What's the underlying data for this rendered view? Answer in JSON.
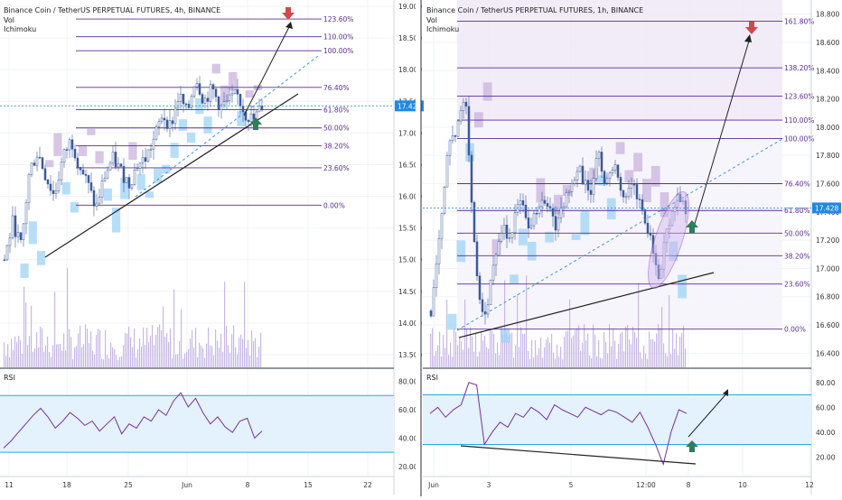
{
  "colors": {
    "grid": "#f0f3fa",
    "fib_line": "#5b2c94",
    "fib_label": "#5b2c94",
    "cloud_green": "#9fd3f5",
    "cloud_red": "#c9b3de",
    "candle": "#3d5a9a",
    "volume": "#c7b8e6",
    "rsi_line": "#7b2fa0",
    "rsi_band": "#e3f2fd",
    "rsi_bound": "#2aa8d6",
    "trend": "#222222",
    "dashed": "#3d95d9",
    "price_tag": "#1e88e5",
    "arrow_up": "#2e7d5b",
    "arrow_down": "#d04a4a"
  },
  "chart_data": [
    {
      "type": "candlestick",
      "title": "Binance Coin / TetherUS PERPETUAL FUTURES, 4h, BINANCE",
      "indicators": [
        "Vol",
        "Ichimoku"
      ],
      "last_price": "17.428",
      "ylim": [
        13.3,
        19.1
      ],
      "yticks": [
        "19.000",
        "18.500",
        "18.000",
        "17.500",
        "17.000",
        "16.500",
        "16.000",
        "15.500",
        "15.000",
        "14.500",
        "14.000",
        "13.500"
      ],
      "ytick_values": [
        19.0,
        18.5,
        18.0,
        17.5,
        17.0,
        16.5,
        16.0,
        15.5,
        15.0,
        14.5,
        14.0,
        13.5
      ],
      "xticks": [
        "11",
        "18",
        "25",
        "Jun",
        "8",
        "15",
        "22"
      ],
      "fib_levels": [
        {
          "label": "123.60%",
          "price": 18.8
        },
        {
          "label": "110.00%",
          "price": 18.52
        },
        {
          "label": "100.00%",
          "price": 18.3
        },
        {
          "label": "76.40%",
          "price": 17.72
        },
        {
          "label": "61.80%",
          "price": 17.37
        },
        {
          "label": "50.00%",
          "price": 17.08
        },
        {
          "label": "38.20%",
          "price": 16.8
        },
        {
          "label": "23.60%",
          "price": 16.45
        },
        {
          "label": "0.00%",
          "price": 15.86
        }
      ],
      "price_series": [
        15.0,
        15.6,
        15.2,
        16.4,
        16.7,
        16.3,
        16.0,
        16.6,
        16.9,
        16.5,
        16.2,
        15.8,
        16.3,
        16.6,
        16.4,
        16.2,
        16.5,
        16.6,
        16.9,
        17.3,
        17.1,
        17.6,
        17.3,
        17.9,
        17.5,
        17.7,
        17.4,
        17.5,
        17.6,
        17.3,
        17.2,
        17.43
      ],
      "rsi": {
        "label": "RSI",
        "ylim": [
          18,
          88
        ],
        "yticks": [
          "80.00",
          "60.00",
          "40.00",
          "20.00"
        ],
        "ytick_values": [
          80,
          60,
          40,
          20
        ],
        "band": [
          30,
          70
        ],
        "values": [
          33,
          38,
          44,
          50,
          56,
          61,
          55,
          47,
          52,
          58,
          54,
          49,
          52,
          45,
          50,
          55,
          43,
          50,
          47,
          55,
          52,
          60,
          56,
          66,
          72,
          62,
          68,
          58,
          50,
          55,
          48,
          44,
          52,
          54,
          40,
          45
        ]
      }
    },
    {
      "type": "candlestick",
      "title": "Binance Coin / TetherUS PERPETUAL FUTURES, 1h, BINANCE",
      "indicators": [
        "Vol",
        "Ichimoku"
      ],
      "last_price": "17.428",
      "ylim": [
        16.3,
        18.9
      ],
      "yticks": [
        "18.800",
        "18.600",
        "18.400",
        "18.200",
        "18.000",
        "17.800",
        "17.600",
        "17.400",
        "17.200",
        "17.000",
        "16.800",
        "16.600",
        "16.400"
      ],
      "ytick_values": [
        18.8,
        18.6,
        18.4,
        18.2,
        18.0,
        17.8,
        17.6,
        17.4,
        17.2,
        17.0,
        16.8,
        16.6,
        16.4
      ],
      "xticks": [
        "Jun",
        "3",
        "5",
        "12:00",
        "8",
        "10",
        "12"
      ],
      "fib_levels": [
        {
          "label": "161.80%",
          "price": 18.75
        },
        {
          "label": "138.20%",
          "price": 18.42
        },
        {
          "label": "123.60%",
          "price": 18.22
        },
        {
          "label": "110.00%",
          "price": 18.05
        },
        {
          "label": "100.00%",
          "price": 17.92
        },
        {
          "label": "76.40%",
          "price": 17.6
        },
        {
          "label": "61.80%",
          "price": 17.41
        },
        {
          "label": "50.00%",
          "price": 17.25
        },
        {
          "label": "38.20%",
          "price": 17.09
        },
        {
          "label": "23.60%",
          "price": 16.89
        },
        {
          "label": "0.00%",
          "price": 16.57
        }
      ],
      "price_series": [
        16.7,
        17.2,
        17.9,
        18.0,
        18.2,
        17.1,
        16.6,
        17.0,
        17.3,
        17.2,
        17.5,
        17.3,
        17.4,
        17.5,
        17.3,
        17.4,
        17.6,
        17.7,
        17.5,
        17.8,
        17.6,
        17.7,
        17.5,
        17.6,
        17.4,
        17.2,
        16.95,
        17.3,
        17.5,
        17.43
      ],
      "rsi": {
        "label": "RSI",
        "ylim": [
          10,
          90
        ],
        "yticks": [
          "80.00",
          "60.00",
          "40.00",
          "20.00"
        ],
        "ytick_values": [
          80,
          60,
          40,
          20
        ],
        "band": [
          30,
          70
        ],
        "values": [
          55,
          60,
          52,
          58,
          62,
          80,
          78,
          30,
          40,
          48,
          44,
          55,
          52,
          60,
          56,
          50,
          62,
          58,
          55,
          52,
          60,
          57,
          54,
          58,
          56,
          52,
          48,
          56,
          44,
          30,
          14,
          40,
          58,
          55
        ]
      }
    }
  ]
}
